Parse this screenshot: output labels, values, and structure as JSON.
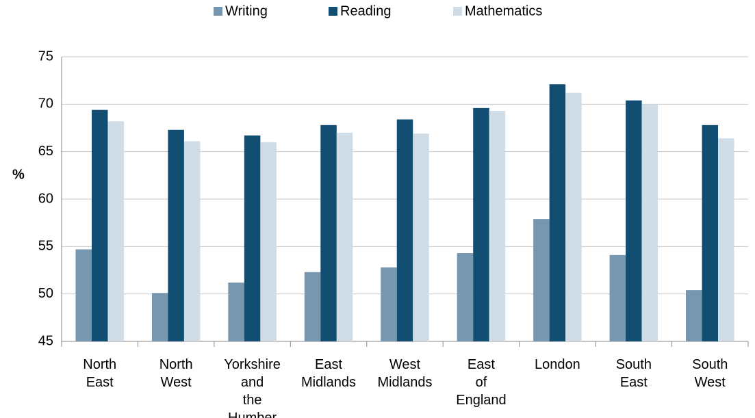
{
  "chart_data": {
    "type": "bar",
    "ylabel": "%",
    "categories": [
      "North East",
      "North West",
      "Yorkshire and the Humber",
      "East Midlands",
      "West Midlands",
      "East of England",
      "London",
      "South East",
      "South West"
    ],
    "series": [
      {
        "name": "Writing",
        "color": "#7796b0",
        "values": [
          54.7,
          50.1,
          51.2,
          52.3,
          52.8,
          54.3,
          57.9,
          54.1,
          50.4
        ]
      },
      {
        "name": "Reading",
        "color": "#124e72",
        "values": [
          69.4,
          67.3,
          66.7,
          67.8,
          68.4,
          69.6,
          72.1,
          70.4,
          67.8
        ]
      },
      {
        "name": "Mathematics",
        "color": "#d0dce6",
        "values": [
          68.2,
          66.1,
          66.0,
          67.0,
          66.9,
          69.3,
          71.2,
          70.0,
          66.4
        ]
      }
    ],
    "ylim": [
      45,
      75
    ],
    "yticks": [
      45,
      50,
      55,
      60,
      65,
      70,
      75
    ],
    "grid": true,
    "legend": "top"
  }
}
